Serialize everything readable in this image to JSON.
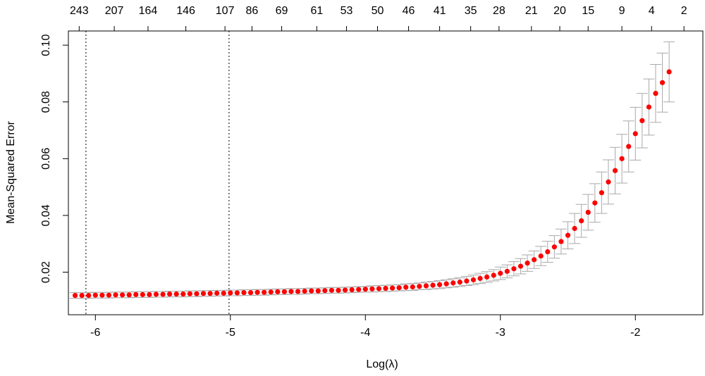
{
  "chart_data": {
    "type": "scatter",
    "xlabel": "Log(λ)",
    "ylabel": "Mean-Squared Error",
    "xlim": [
      -6.2,
      -1.5
    ],
    "ylim": [
      0.005,
      0.105
    ],
    "x_ticks": [
      -6,
      -5,
      -4,
      -3,
      -2
    ],
    "y_ticks": [
      0.02,
      0.04,
      0.06,
      0.08,
      0.1
    ],
    "x_tick_labels": [
      "-6",
      "-5",
      "-4",
      "-3",
      "-2"
    ],
    "y_tick_labels": [
      "0.02",
      "0.04",
      "0.06",
      "0.08",
      "0.10"
    ],
    "top_axis_labels": [
      "243",
      "207",
      "164",
      "146",
      "107",
      "86",
      "69",
      "61",
      "53",
      "50",
      "46",
      "41",
      "35",
      "28",
      "21",
      "20",
      "15",
      "9",
      "4",
      "2"
    ],
    "top_axis_positions": [
      -6.12,
      -5.86,
      -5.61,
      -5.33,
      -5.04,
      -4.84,
      -4.62,
      -4.36,
      -4.14,
      -3.91,
      -3.68,
      -3.45,
      -3.22,
      -3.01,
      -2.77,
      -2.56,
      -2.35,
      -2.1,
      -1.88,
      -1.64
    ],
    "vlines": [
      -6.07,
      -5.01
    ],
    "series": [
      {
        "point_color": "#ff0000",
        "errorbar_color": "#a9a9a9",
        "x_start": -6.15,
        "x_step": 0.05,
        "mse": [
          0.0118,
          0.0118,
          0.0118,
          0.0119,
          0.0119,
          0.0119,
          0.012,
          0.012,
          0.012,
          0.0121,
          0.0121,
          0.0121,
          0.0122,
          0.0122,
          0.0123,
          0.0123,
          0.0123,
          0.0124,
          0.0124,
          0.0125,
          0.0125,
          0.0126,
          0.0126,
          0.0127,
          0.0127,
          0.0128,
          0.0128,
          0.0129,
          0.0129,
          0.013,
          0.0131,
          0.0131,
          0.0132,
          0.0132,
          0.0133,
          0.0134,
          0.0134,
          0.0135,
          0.0136,
          0.0136,
          0.0137,
          0.0138,
          0.0139,
          0.014,
          0.0141,
          0.0142,
          0.0143,
          0.0144,
          0.0145,
          0.0147,
          0.0148,
          0.015,
          0.0152,
          0.0154,
          0.0156,
          0.0159,
          0.0162,
          0.0165,
          0.0169,
          0.0173,
          0.0178,
          0.0183,
          0.0189,
          0.0196,
          0.0203,
          0.0212,
          0.0221,
          0.0232,
          0.0244,
          0.0257,
          0.0272,
          0.0289,
          0.0308,
          0.033,
          0.0354,
          0.0381,
          0.0411,
          0.0444,
          0.048,
          0.0518,
          0.0558,
          0.06,
          0.0643,
          0.0688,
          0.0734,
          0.0782,
          0.083,
          0.0868,
          0.0906
        ],
        "se": [
          0.001,
          0.001,
          0.001,
          0.001,
          0.001,
          0.001,
          0.001,
          0.001,
          0.001,
          0.001,
          0.001,
          0.001,
          0.001,
          0.001,
          0.001,
          0.001,
          0.001,
          0.001,
          0.001,
          0.001,
          0.001,
          0.001,
          0.001,
          0.001,
          0.001,
          0.001,
          0.001,
          0.001,
          0.001,
          0.001,
          0.001,
          0.001,
          0.001,
          0.001,
          0.001,
          0.001,
          0.001,
          0.001,
          0.001,
          0.001,
          0.001,
          0.001,
          0.001,
          0.001,
          0.0011,
          0.0011,
          0.0011,
          0.0011,
          0.0011,
          0.0012,
          0.0012,
          0.0012,
          0.0013,
          0.0013,
          0.0014,
          0.0014,
          0.0015,
          0.0015,
          0.0016,
          0.0017,
          0.0018,
          0.0019,
          0.002,
          0.0022,
          0.0023,
          0.0025,
          0.0027,
          0.0029,
          0.0031,
          0.0034,
          0.0037,
          0.004,
          0.0044,
          0.0048,
          0.0053,
          0.0058,
          0.0063,
          0.0068,
          0.0073,
          0.0078,
          0.0082,
          0.0086,
          0.009,
          0.0093,
          0.0096,
          0.0099,
          0.0102,
          0.0104,
          0.0106
        ]
      }
    ]
  }
}
